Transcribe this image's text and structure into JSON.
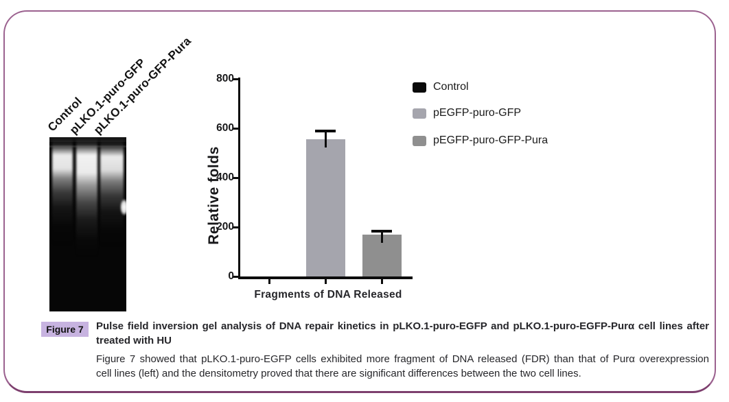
{
  "figure": {
    "badge": "Figure 7",
    "caption_title_lines": [
      "Pulse field inversion gel analysis of DNA repair kinetics in pLKO.1-puro-EGFP and pLKO.1-puro-EGFP-Purα cell lines after",
      "treated with HU"
    ],
    "caption_body_lines": [
      "Figure 7 showed that pLKO.1-puro-EGFP cells exhibited more fragment of DNA released (FDR) than that of Purα overexpression",
      "cell lines (left) and the densitometry proved that there are significant differences between the two cell lines."
    ]
  },
  "gel": {
    "lane_labels": [
      "Control",
      "pLKO.1-puro-GFP",
      "pLKO.1-puro-GFP-Pura"
    ]
  },
  "chart_data": {
    "type": "bar",
    "title": "",
    "xlabel": "Fragments of DNA Released",
    "ylabel": "Relative folds",
    "ylim": [
      0,
      800
    ],
    "yticks": [
      800,
      600,
      400,
      200,
      0
    ],
    "categories": [
      "Control",
      "pEGFP-puro-GFP",
      "pEGFP-puro-GFP-Pura"
    ],
    "series": [
      {
        "name": "Control",
        "value": 0,
        "error": 0,
        "color": "#0a0a0a"
      },
      {
        "name": "pEGFP-puro-GFP",
        "value": 555,
        "error": 35,
        "color": "#a5a5ad"
      },
      {
        "name": "pEGFP-puro-GFP-Pura",
        "value": 170,
        "error": 13,
        "color": "#8f8f8f"
      }
    ],
    "grid": false,
    "legend_position": "right"
  },
  "colors": {
    "frame_border": "#9b618f",
    "frame_bottom_rule": "#7d3f6e",
    "badge_bg": "#c7b3e0",
    "axis": "#0c0c0c",
    "caption_text": "#26262a"
  }
}
